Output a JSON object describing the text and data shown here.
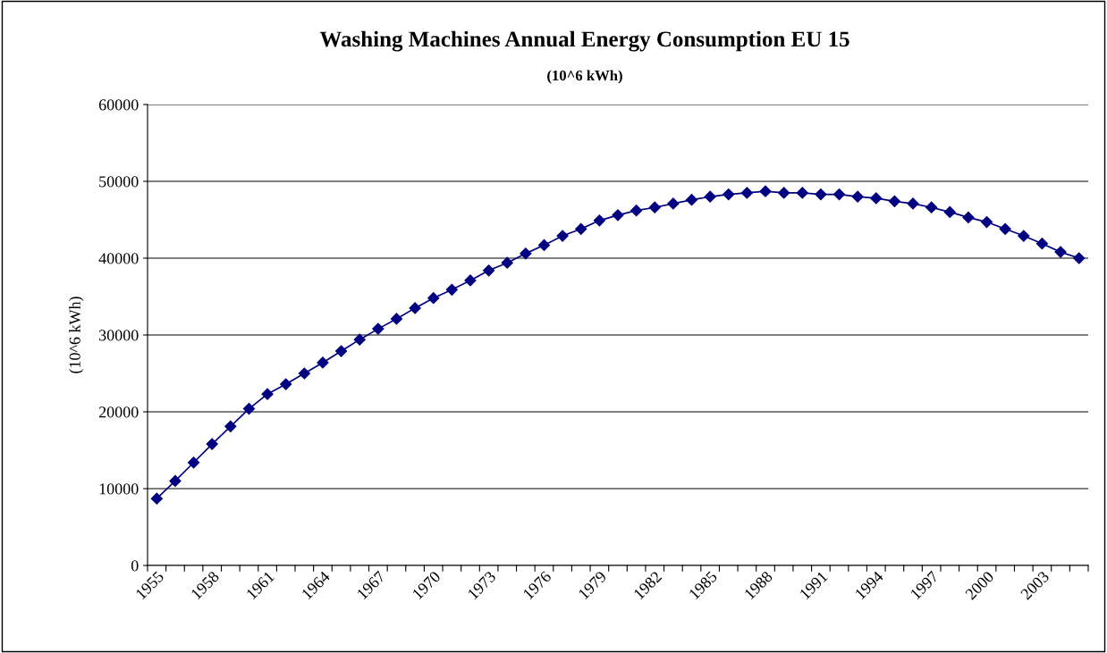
{
  "chart_data": {
    "type": "line",
    "title": "Washing Machines Annual Energy Consumption EU 15",
    "subtitle": "(10^6 kWh)",
    "ylabel": "(10^6 kWh)",
    "categories": [
      "1955",
      null,
      null,
      "1958",
      null,
      null,
      "1961",
      null,
      null,
      "1964",
      null,
      null,
      "1967",
      null,
      null,
      "1970",
      null,
      null,
      "1973",
      null,
      null,
      "1976",
      null,
      null,
      "1979",
      null,
      null,
      "1982",
      null,
      null,
      "1985",
      null,
      null,
      "1988",
      null,
      null,
      "1991",
      null,
      null,
      "1994",
      null,
      null,
      "1997",
      null,
      null,
      "2000",
      null,
      null,
      "2003",
      null,
      null
    ],
    "series": [
      {
        "color": "#000080",
        "values": [
          8700,
          11000,
          13400,
          15800,
          18100,
          20400,
          22300,
          23600,
          25000,
          26400,
          27900,
          29400,
          30800,
          32100,
          33500,
          34800,
          35900,
          37100,
          38400,
          39400,
          40600,
          41700,
          42900,
          43800,
          44900,
          45600,
          46200,
          46600,
          47100,
          47600,
          48000,
          48300,
          48500,
          48700,
          48500,
          48500,
          48300,
          48300,
          48000,
          47800,
          47400,
          47100,
          46600,
          46000,
          45300,
          44700,
          43800,
          42900,
          41900,
          40800,
          40000
        ]
      }
    ],
    "ylim": [
      0,
      60000
    ],
    "yticks": [
      0,
      10000,
      20000,
      30000,
      40000,
      50000,
      60000
    ],
    "grid": "y",
    "marker": "diamond",
    "line_style": "solid"
  }
}
